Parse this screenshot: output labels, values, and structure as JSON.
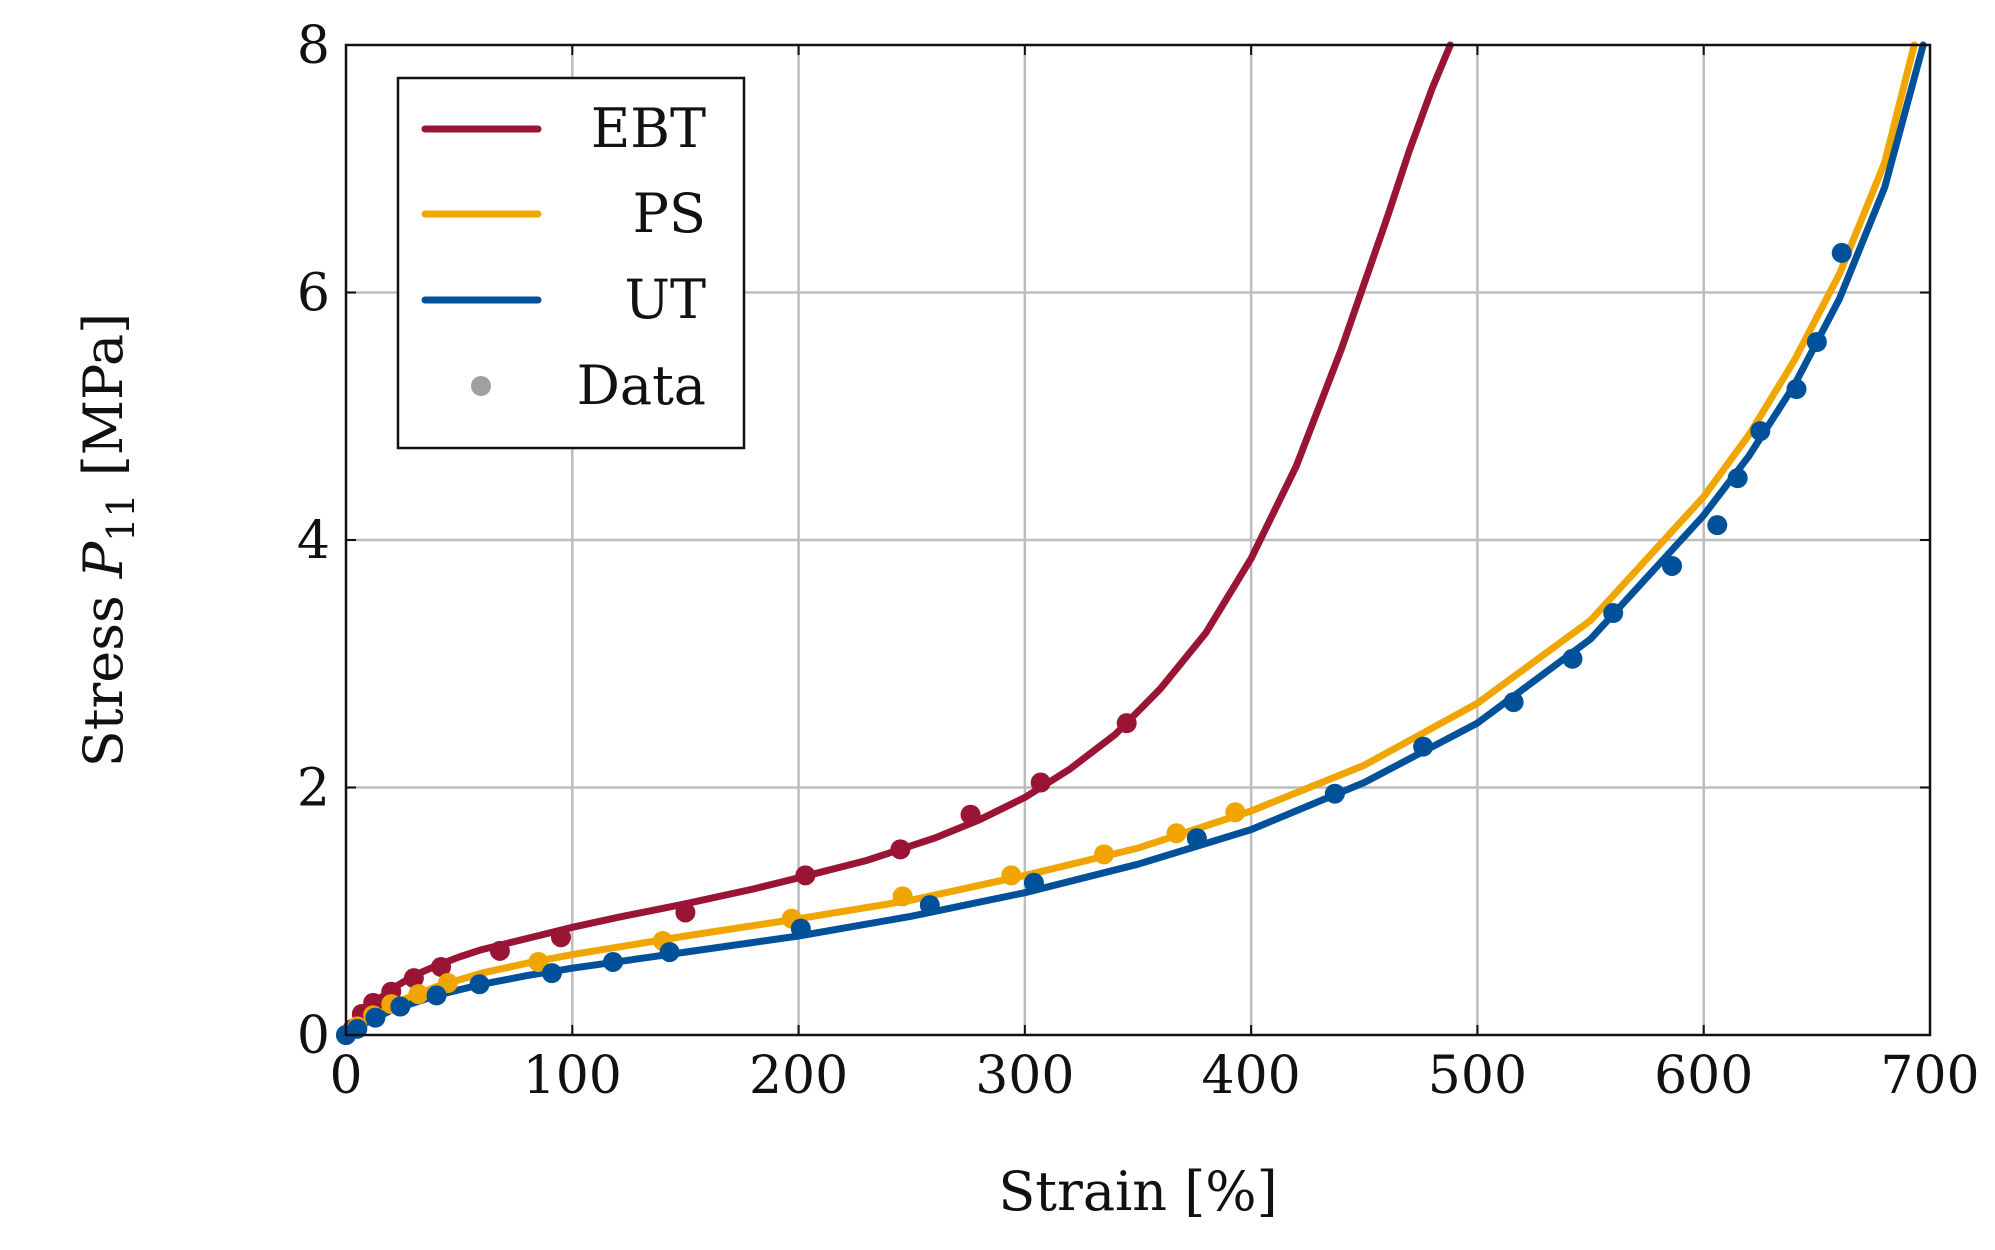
{
  "chart_data": {
    "type": "line",
    "title": "",
    "xlabel": "Strain [%]",
    "ylabel_parts": {
      "prefix": "Stress ",
      "symbol": "P",
      "subscript": "11",
      "suffix": " [MPa]"
    },
    "xlim": [
      0,
      700
    ],
    "ylim": [
      0,
      8
    ],
    "xticks": [
      0,
      100,
      200,
      300,
      400,
      500,
      600,
      700
    ],
    "yticks": [
      0,
      2,
      4,
      6,
      8
    ],
    "grid": true,
    "legend": {
      "placement": "top-left",
      "entries": [
        {
          "label": "EBT",
          "kind": "line",
          "color": "#9a1436"
        },
        {
          "label": "PS",
          "kind": "line",
          "color": "#f0a500"
        },
        {
          "label": "UT",
          "kind": "line",
          "color": "#005199"
        },
        {
          "label": "Data",
          "kind": "marker",
          "color": "#a0a0a0"
        }
      ]
    },
    "series": [
      {
        "name": "EBT",
        "kind": "model",
        "color": "#9a1436",
        "x": [
          0,
          5,
          10,
          20,
          30,
          40,
          50,
          60,
          80,
          100,
          120,
          150,
          180,
          200,
          230,
          260,
          280,
          300,
          320,
          340,
          360,
          380,
          400,
          420,
          440,
          460,
          470,
          480,
          488
        ],
        "y": [
          0,
          0.12,
          0.22,
          0.37,
          0.48,
          0.56,
          0.63,
          0.69,
          0.78,
          0.87,
          0.95,
          1.06,
          1.18,
          1.27,
          1.41,
          1.59,
          1.74,
          1.92,
          2.15,
          2.43,
          2.8,
          3.25,
          3.85,
          4.6,
          5.55,
          6.6,
          7.15,
          7.65,
          8.0
        ]
      },
      {
        "name": "PS",
        "kind": "model",
        "color": "#f0a500",
        "x": [
          0,
          10,
          20,
          40,
          60,
          80,
          100,
          150,
          200,
          250,
          300,
          350,
          400,
          450,
          500,
          550,
          600,
          620,
          640,
          660,
          680,
          693
        ],
        "y": [
          0,
          0.15,
          0.25,
          0.39,
          0.5,
          0.58,
          0.65,
          0.8,
          0.94,
          1.09,
          1.29,
          1.51,
          1.81,
          2.18,
          2.68,
          3.35,
          4.35,
          4.85,
          5.45,
          6.15,
          7.05,
          8.0
        ]
      },
      {
        "name": "UT",
        "kind": "model",
        "color": "#005199",
        "x": [
          0,
          10,
          20,
          40,
          60,
          80,
          100,
          150,
          200,
          250,
          300,
          350,
          400,
          450,
          500,
          550,
          600,
          620,
          640,
          660,
          680,
          697
        ],
        "y": [
          0,
          0.11,
          0.2,
          0.32,
          0.41,
          0.48,
          0.54,
          0.67,
          0.8,
          0.96,
          1.15,
          1.38,
          1.66,
          2.04,
          2.52,
          3.2,
          4.2,
          4.68,
          5.25,
          5.95,
          6.85,
          8.0
        ]
      },
      {
        "name": "EBT",
        "kind": "data",
        "color": "#9a1436",
        "x": [
          0,
          3,
          7,
          12,
          20,
          30,
          42,
          68,
          95,
          150,
          203,
          245,
          276,
          307,
          345
        ],
        "y": [
          0,
          0.05,
          0.17,
          0.26,
          0.35,
          0.46,
          0.55,
          0.68,
          0.79,
          0.99,
          1.29,
          1.5,
          1.78,
          2.04,
          2.52
        ]
      },
      {
        "name": "PS",
        "kind": "data",
        "color": "#f0a500",
        "x": [
          0,
          5,
          12,
          20,
          32,
          45,
          85,
          140,
          197,
          246,
          294,
          335,
          367,
          393
        ],
        "y": [
          0,
          0.07,
          0.16,
          0.25,
          0.33,
          0.42,
          0.59,
          0.76,
          0.94,
          1.12,
          1.29,
          1.46,
          1.63,
          1.8
        ]
      },
      {
        "name": "UT",
        "kind": "data",
        "color": "#005199",
        "x": [
          0,
          5,
          13,
          24,
          40,
          59,
          91,
          118,
          143,
          201,
          258,
          304,
          376,
          437,
          476,
          516,
          542,
          560,
          586,
          606,
          615,
          625,
          641,
          650,
          661
        ],
        "y": [
          0,
          0.05,
          0.14,
          0.23,
          0.32,
          0.41,
          0.5,
          0.59,
          0.67,
          0.86,
          1.05,
          1.23,
          1.59,
          1.95,
          2.33,
          2.69,
          3.04,
          3.41,
          3.79,
          4.12,
          4.5,
          4.88,
          5.22,
          5.6,
          6.32
        ]
      }
    ]
  }
}
